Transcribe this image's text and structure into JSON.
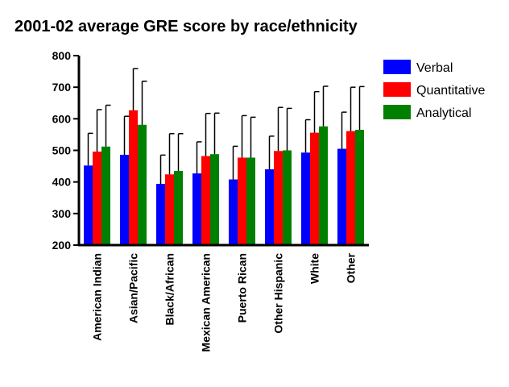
{
  "chart_data": {
    "type": "bar",
    "title": "2001-02 average GRE score by race/ethnicity",
    "categories": [
      "American Indian",
      "Asian/Pacific",
      "Black/African",
      "Mexican American",
      "Puerto Rican",
      "Other Hispanic",
      "White",
      "Other"
    ],
    "series": [
      {
        "name": "Verbal",
        "color": "#0000ff",
        "values": [
          452,
          486,
          394,
          427,
          408,
          440,
          493,
          505
        ],
        "error": [
          102,
          122,
          91,
          100,
          105,
          105,
          104,
          116
        ]
      },
      {
        "name": "Quantitative",
        "color": "#ff0000",
        "values": [
          496,
          627,
          424,
          482,
          477,
          498,
          556,
          561
        ],
        "error": [
          133,
          132,
          129,
          135,
          133,
          138,
          130,
          139
        ]
      },
      {
        "name": "Analytical",
        "color": "#008000",
        "values": [
          512,
          581,
          435,
          488,
          477,
          500,
          576,
          565
        ],
        "error": [
          131,
          138,
          118,
          130,
          128,
          133,
          127,
          137
        ]
      }
    ],
    "ylim": [
      200,
      800
    ],
    "yticks": [
      200,
      300,
      400,
      500,
      600,
      700,
      800
    ],
    "legend": "right",
    "grid": false,
    "xlabel": "",
    "ylabel": ""
  }
}
